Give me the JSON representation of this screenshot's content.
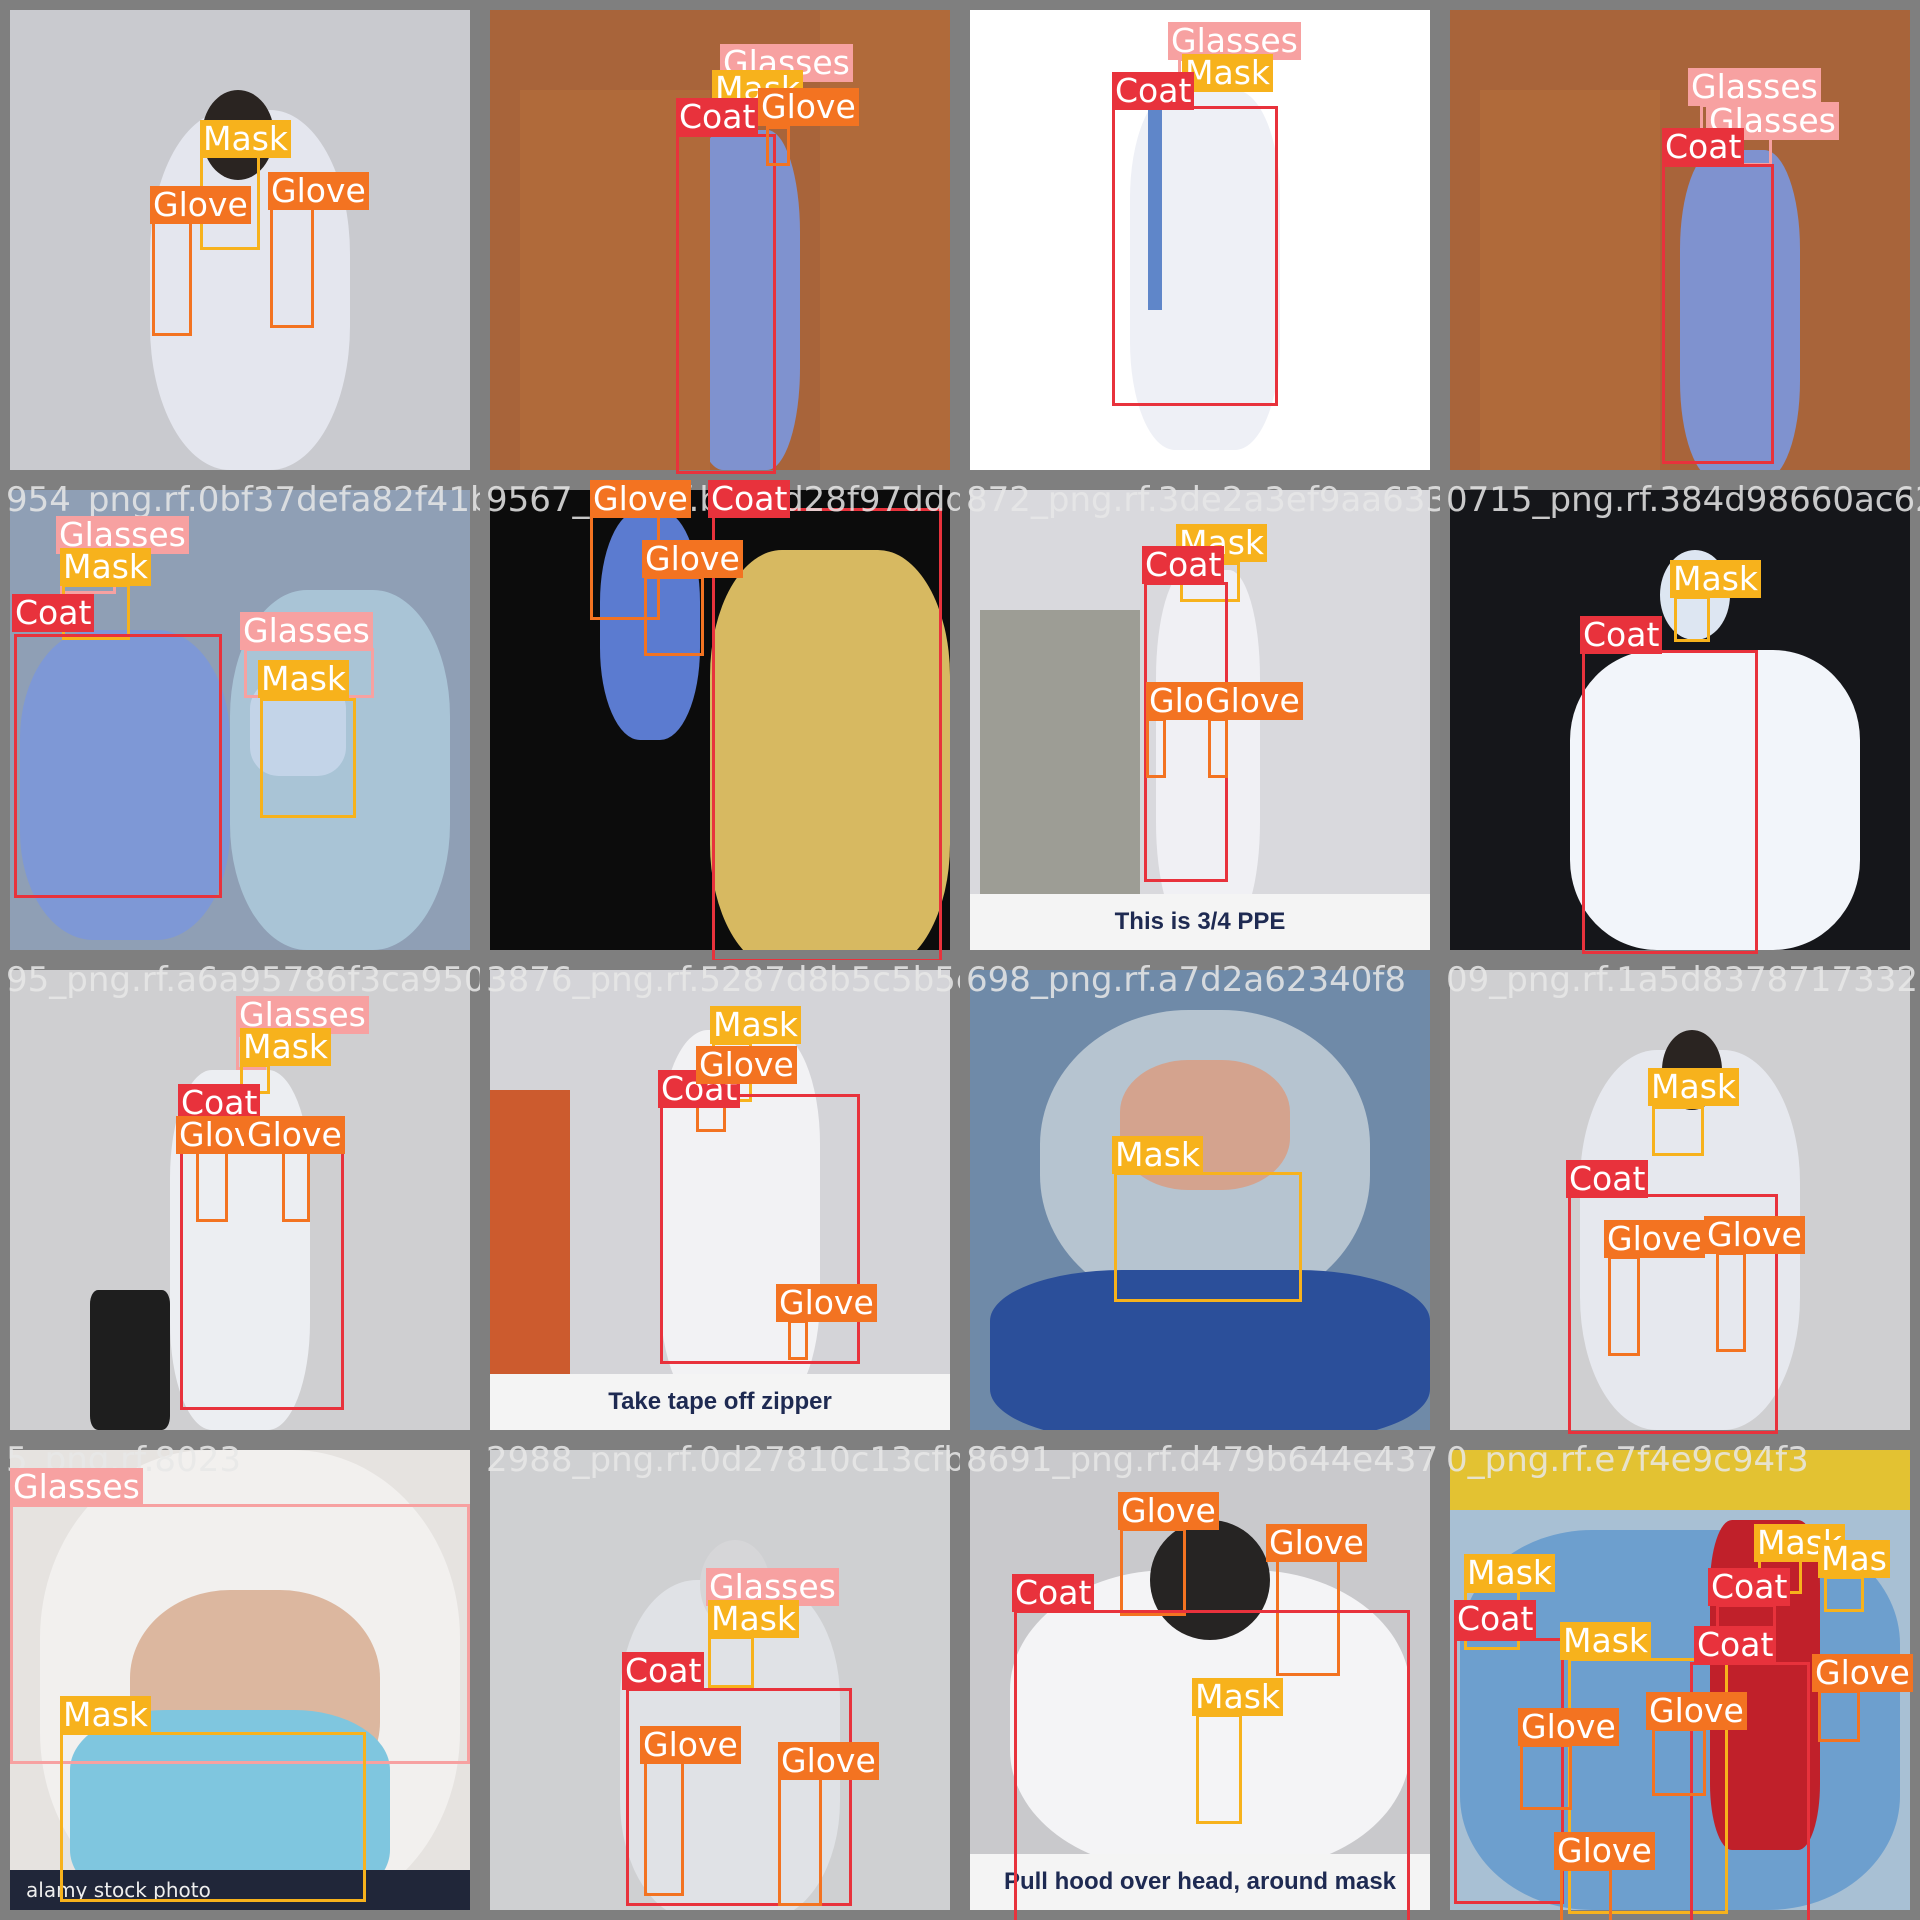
{
  "colors": {
    "Coat": "#e8323c",
    "Glasses": "#f7a1a1",
    "Mask": "#f7b21c",
    "Glove": "#f37321",
    "label_text": "#ffffff"
  },
  "tiles": [
    {
      "filenames": [],
      "caption": "",
      "bg": "#c9cacf",
      "labels": [
        {
          "text": "Mask",
          "cls": "Mask"
        },
        {
          "text": "Glove",
          "cls": "Glove"
        },
        {
          "text": "Glove",
          "cls": "Glove"
        }
      ]
    },
    {
      "filenames": [],
      "caption": "",
      "bg": "#a8643a",
      "labels": [
        {
          "text": "Glasses",
          "cls": "Glasses"
        },
        {
          "text": "Mask",
          "cls": "Mask"
        },
        {
          "text": "Coat",
          "cls": "Coat"
        },
        {
          "text": "Glove",
          "cls": "Glove"
        }
      ]
    },
    {
      "filenames": [],
      "caption": "",
      "bg": "#ffffff",
      "labels": [
        {
          "text": "Glasses",
          "cls": "Glasses"
        },
        {
          "text": "Mask",
          "cls": "Mask"
        },
        {
          "text": "Coat",
          "cls": "Coat"
        }
      ]
    },
    {
      "filenames": [],
      "caption": "",
      "bg": "#a8643a",
      "labels": [
        {
          "text": "Glasses",
          "cls": "Glasses"
        },
        {
          "text": "Glasses",
          "cls": "Glasses"
        },
        {
          "text": "Coat",
          "cls": "Coat"
        }
      ]
    },
    {
      "filenames": [
        "954_png.rf.0bf37defa82f41b"
      ],
      "caption": "",
      "bg": "#8f9fb5",
      "labels": [
        {
          "text": "Glasses",
          "cls": "Glasses"
        },
        {
          "text": "Mask",
          "cls": "Mask"
        },
        {
          "text": "Coat",
          "cls": "Coat"
        },
        {
          "text": "Glasses",
          "cls": "Glasses"
        },
        {
          "text": "Mask",
          "cls": "Mask"
        }
      ]
    },
    {
      "filenames": [
        "9567_png.rf.bca8d28f97ddd5"
      ],
      "caption": "",
      "bg": "#0c0c0c",
      "labels": [
        {
          "text": "Glove",
          "cls": "Glove"
        },
        {
          "text": "Coat",
          "cls": "Coat"
        },
        {
          "text": "Glove",
          "cls": "Glove"
        }
      ]
    },
    {
      "filenames": [
        "872_png.rf.3de2a3ef9aa633b9"
      ],
      "caption": "This is 3/4 PPE",
      "bg": "#d9d9dd",
      "labels": [
        {
          "text": "Mask",
          "cls": "Mask"
        },
        {
          "text": "Coat",
          "cls": "Coat"
        },
        {
          "text": "Glo",
          "cls": "Glove"
        },
        {
          "text": "Glove",
          "cls": "Glove"
        }
      ]
    },
    {
      "filenames": [
        "0715_png.rf.384d98660ac62d"
      ],
      "caption": "",
      "bg": "#15161a",
      "labels": [
        {
          "text": "Mask",
          "cls": "Mask"
        },
        {
          "text": "Coat",
          "cls": "Coat"
        }
      ]
    },
    {
      "filenames": [
        "95_png.rf.a6a95786f3ca950"
      ],
      "caption": "",
      "bg": "#cfcfd1",
      "labels": [
        {
          "text": "Glasses",
          "cls": "Glasses"
        },
        {
          "text": "Mask",
          "cls": "Mask"
        },
        {
          "text": "Coat",
          "cls": "Coat"
        },
        {
          "text": "Glove",
          "cls": "Glove"
        },
        {
          "text": "Glove",
          "cls": "Glove"
        }
      ]
    },
    {
      "filenames": [
        "3876_png.rf.5287d8b5c5b5e9e8"
      ],
      "caption": "Take tape off zipper",
      "bg": "#d4d4d8",
      "labels": [
        {
          "text": "Mask",
          "cls": "Mask"
        },
        {
          "text": "Coat",
          "cls": "Coat"
        },
        {
          "text": "Glove",
          "cls": "Glove"
        },
        {
          "text": "Glove",
          "cls": "Glove"
        }
      ]
    },
    {
      "filenames": [
        "698_png.rf.a7d2a62340f8"
      ],
      "caption": "",
      "bg": "#6f8aa8",
      "labels": [
        {
          "text": "Mask",
          "cls": "Mask"
        }
      ]
    },
    {
      "filenames": [
        "09_png.rf.1a5d8378717332"
      ],
      "caption": "",
      "bg": "#cfcfd1",
      "labels": [
        {
          "text": "Mask",
          "cls": "Mask"
        },
        {
          "text": "Coat",
          "cls": "Coat"
        },
        {
          "text": "Glove",
          "cls": "Glove"
        },
        {
          "text": "Glove",
          "cls": "Glove"
        }
      ]
    },
    {
      "filenames": [
        "5_png.rf.8023"
      ],
      "caption": "",
      "stock": "alamy stock photo",
      "bg": "#e6e3e0",
      "labels": [
        {
          "text": "Glasses",
          "cls": "Glasses"
        },
        {
          "text": "Mask",
          "cls": "Mask"
        }
      ]
    },
    {
      "filenames": [
        "2988_png.rf.0d27810c13cfb952"
      ],
      "caption": "",
      "bg": "#cfd0d2",
      "labels": [
        {
          "text": "Glasses",
          "cls": "Glasses"
        },
        {
          "text": "Mask",
          "cls": "Mask"
        },
        {
          "text": "Coat",
          "cls": "Coat"
        },
        {
          "text": "Glove",
          "cls": "Glove"
        },
        {
          "text": "Glove",
          "cls": "Glove"
        }
      ]
    },
    {
      "filenames": [
        "8691_png.rf.d479b644e4378"
      ],
      "caption": "Pull hood over head, around mask",
      "bg": "#c9c9cc",
      "labels": [
        {
          "text": "Glove",
          "cls": "Glove"
        },
        {
          "text": "Glove",
          "cls": "Glove"
        },
        {
          "text": "Coat",
          "cls": "Coat"
        },
        {
          "text": "Mask",
          "cls": "Mask"
        }
      ]
    },
    {
      "filenames": [
        "0_png.rf.e7f4e9c94f3"
      ],
      "caption": "",
      "bg": "#a8c0d4",
      "labels": [
        {
          "text": "Mask",
          "cls": "Mask"
        },
        {
          "text": "Mask",
          "cls": "Mask"
        },
        {
          "text": "Mas",
          "cls": "Mask"
        },
        {
          "text": "Coat",
          "cls": "Coat"
        },
        {
          "text": "Coat",
          "cls": "Coat"
        },
        {
          "text": "Mask",
          "cls": "Mask"
        },
        {
          "text": "Coat",
          "cls": "Coat"
        },
        {
          "text": "Glove",
          "cls": "Glove"
        },
        {
          "text": "Glove",
          "cls": "Glove"
        },
        {
          "text": "Glove",
          "cls": "Glove"
        },
        {
          "text": "Glove",
          "cls": "Glove"
        }
      ]
    }
  ]
}
